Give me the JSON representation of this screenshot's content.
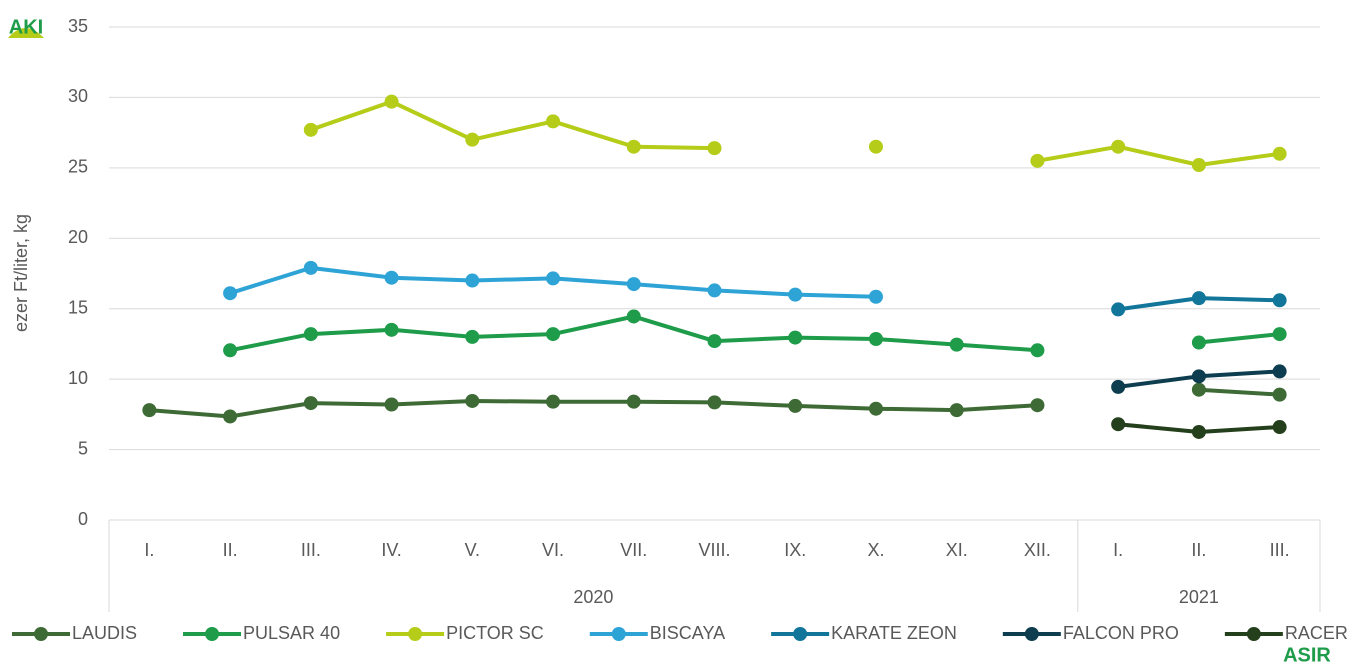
{
  "chart_data": {
    "type": "line",
    "y_label": "ezer Ft/liter, kg",
    "category_groups": [
      {
        "label": "2020",
        "categories": [
          "I.",
          "II.",
          "III.",
          "IV.",
          "V.",
          "VI.",
          "VII.",
          "VIII.",
          "IX.",
          "X.",
          "XI.",
          "XII."
        ]
      },
      {
        "label": "2021",
        "categories": [
          "I.",
          "II.",
          "III."
        ]
      }
    ],
    "ylim": [
      0,
      35
    ],
    "yticks": [
      0,
      5,
      10,
      15,
      20,
      25,
      30,
      35
    ],
    "grid": true,
    "legend": "bottom",
    "series": [
      {
        "name": "LAUDIS",
        "color": "#3e6b35",
        "values": [
          7.8,
          7.35,
          8.3,
          8.2,
          8.45,
          8.4,
          8.4,
          8.35,
          8.1,
          7.9,
          7.8,
          8.15,
          null,
          9.25,
          8.9
        ]
      },
      {
        "name": "PULSAR 40",
        "color": "#1e9c4a",
        "values": [
          null,
          12.05,
          13.2,
          13.5,
          13.0,
          13.2,
          14.45,
          12.7,
          12.95,
          12.85,
          12.45,
          12.05,
          null,
          12.6,
          13.2
        ]
      },
      {
        "name": "PICTOR SC",
        "color": "#b5cc18",
        "values": [
          null,
          null,
          27.7,
          29.7,
          27.0,
          28.3,
          26.5,
          26.4,
          null,
          26.5,
          null,
          25.5,
          26.5,
          25.2,
          26.0
        ]
      },
      {
        "name": "BISCAYA",
        "color": "#2ea3d6",
        "values": [
          null,
          16.1,
          17.9,
          17.2,
          17.0,
          17.15,
          16.75,
          16.3,
          16.0,
          15.85,
          null,
          null,
          null,
          null,
          null
        ]
      },
      {
        "name": "KARATE ZEON",
        "color": "#11769a",
        "values": [
          null,
          null,
          null,
          null,
          null,
          null,
          null,
          null,
          null,
          null,
          null,
          null,
          14.95,
          15.75,
          15.6
        ]
      },
      {
        "name": "FALCON PRO",
        "color": "#0d3d4f",
        "values": [
          null,
          null,
          null,
          null,
          null,
          null,
          null,
          null,
          null,
          null,
          null,
          null,
          9.45,
          10.2,
          10.55
        ]
      },
      {
        "name": "RACER",
        "color": "#243f1c",
        "values": [
          null,
          null,
          null,
          null,
          null,
          null,
          null,
          null,
          null,
          null,
          null,
          null,
          6.8,
          6.25,
          6.6
        ]
      }
    ]
  },
  "logos": {
    "left": "AKI",
    "right": "ASIR"
  }
}
